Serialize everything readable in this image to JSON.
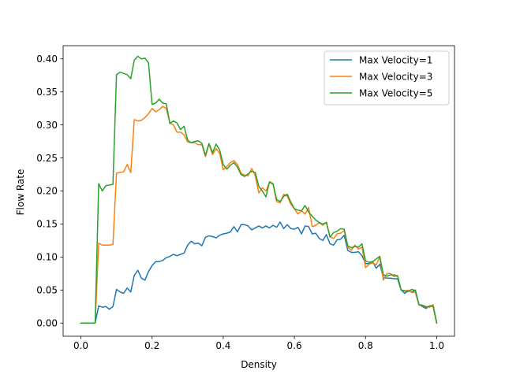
{
  "chart_data": {
    "type": "line",
    "title": "",
    "xlabel": "Density",
    "ylabel": "Flow Rate",
    "xlim": [
      -0.05,
      1.05
    ],
    "ylim": [
      -0.02,
      0.42
    ],
    "xticks": [
      0.0,
      0.2,
      0.4,
      0.6,
      0.8,
      1.0
    ],
    "xtick_labels": [
      "0.0",
      "0.2",
      "0.4",
      "0.6",
      "0.8",
      "1.0"
    ],
    "yticks": [
      0.0,
      0.05,
      0.1,
      0.15,
      0.2,
      0.25,
      0.3,
      0.35,
      0.4
    ],
    "ytick_labels": [
      "0.00",
      "0.05",
      "0.10",
      "0.15",
      "0.20",
      "0.25",
      "0.30",
      "0.35",
      "0.40"
    ],
    "grid": false,
    "legend_position": "top-right",
    "series": [
      {
        "name": "Max Velocity=1",
        "color": "#1f77b4",
        "x": [
          0.0,
          0.01,
          0.02,
          0.03,
          0.04,
          0.05,
          0.06,
          0.07,
          0.08,
          0.09,
          0.1,
          0.11,
          0.12,
          0.13,
          0.14,
          0.15,
          0.16,
          0.17,
          0.18,
          0.19,
          0.2,
          0.21,
          0.22,
          0.23,
          0.24,
          0.25,
          0.26,
          0.27,
          0.28,
          0.29,
          0.3,
          0.31,
          0.32,
          0.33,
          0.34,
          0.35,
          0.36,
          0.37,
          0.38,
          0.39,
          0.4,
          0.41,
          0.42,
          0.43,
          0.44,
          0.45,
          0.46,
          0.47,
          0.48,
          0.49,
          0.5,
          0.51,
          0.52,
          0.53,
          0.54,
          0.55,
          0.56,
          0.57,
          0.58,
          0.59,
          0.6,
          0.61,
          0.62,
          0.63,
          0.64,
          0.65,
          0.66,
          0.67,
          0.68,
          0.69,
          0.7,
          0.71,
          0.72,
          0.73,
          0.74,
          0.75,
          0.76,
          0.77,
          0.78,
          0.79,
          0.8,
          0.81,
          0.82,
          0.83,
          0.84,
          0.85,
          0.86,
          0.87,
          0.88,
          0.89,
          0.9,
          0.91,
          0.92,
          0.93,
          0.94,
          0.95,
          0.96,
          0.97,
          0.98,
          0.99,
          1.0
        ],
        "y": [
          0.0,
          0.0,
          0.0,
          0.0,
          0.0,
          0.026,
          0.024,
          0.025,
          0.021,
          0.025,
          0.051,
          0.047,
          0.045,
          0.053,
          0.047,
          0.072,
          0.08,
          0.068,
          0.065,
          0.078,
          0.087,
          0.093,
          0.093,
          0.095,
          0.099,
          0.101,
          0.104,
          0.102,
          0.104,
          0.106,
          0.118,
          0.124,
          0.12,
          0.121,
          0.117,
          0.13,
          0.132,
          0.131,
          0.129,
          0.133,
          0.135,
          0.136,
          0.138,
          0.146,
          0.138,
          0.149,
          0.149,
          0.147,
          0.141,
          0.144,
          0.147,
          0.144,
          0.147,
          0.144,
          0.148,
          0.145,
          0.153,
          0.143,
          0.149,
          0.143,
          0.142,
          0.145,
          0.135,
          0.147,
          0.146,
          0.135,
          0.136,
          0.128,
          0.125,
          0.134,
          0.12,
          0.118,
          0.126,
          0.127,
          0.133,
          0.11,
          0.107,
          0.107,
          0.108,
          0.102,
          0.09,
          0.09,
          0.093,
          0.083,
          0.089,
          0.069,
          0.068,
          0.068,
          0.067,
          0.067,
          0.05,
          0.045,
          0.049,
          0.047,
          0.05,
          0.028,
          0.025,
          0.022,
          0.026,
          0.026,
          0.0
        ]
      },
      {
        "name": "Max Velocity=3",
        "color": "#ff7f0e",
        "x": [
          0.0,
          0.01,
          0.02,
          0.03,
          0.04,
          0.05,
          0.06,
          0.07,
          0.08,
          0.09,
          0.1,
          0.11,
          0.12,
          0.13,
          0.14,
          0.15,
          0.16,
          0.17,
          0.18,
          0.19,
          0.2,
          0.21,
          0.22,
          0.23,
          0.24,
          0.25,
          0.26,
          0.27,
          0.28,
          0.29,
          0.3,
          0.31,
          0.32,
          0.33,
          0.34,
          0.35,
          0.36,
          0.37,
          0.38,
          0.39,
          0.4,
          0.41,
          0.42,
          0.43,
          0.44,
          0.45,
          0.46,
          0.47,
          0.48,
          0.49,
          0.5,
          0.51,
          0.52,
          0.53,
          0.54,
          0.55,
          0.56,
          0.57,
          0.58,
          0.59,
          0.6,
          0.61,
          0.62,
          0.63,
          0.64,
          0.65,
          0.66,
          0.67,
          0.68,
          0.69,
          0.7,
          0.71,
          0.72,
          0.73,
          0.74,
          0.75,
          0.76,
          0.77,
          0.78,
          0.79,
          0.8,
          0.81,
          0.82,
          0.83,
          0.84,
          0.85,
          0.86,
          0.87,
          0.88,
          0.89,
          0.9,
          0.91,
          0.92,
          0.93,
          0.94,
          0.95,
          0.96,
          0.97,
          0.98,
          0.99,
          1.0
        ],
        "y": [
          0.0,
          0.0,
          0.0,
          0.0,
          0.0,
          0.121,
          0.118,
          0.118,
          0.118,
          0.119,
          0.227,
          0.228,
          0.229,
          0.24,
          0.228,
          0.308,
          0.306,
          0.307,
          0.311,
          0.317,
          0.325,
          0.32,
          0.323,
          0.328,
          0.325,
          0.303,
          0.3,
          0.289,
          0.289,
          0.285,
          0.274,
          0.273,
          0.273,
          0.27,
          0.27,
          0.252,
          0.271,
          0.255,
          0.264,
          0.257,
          0.232,
          0.237,
          0.243,
          0.246,
          0.24,
          0.227,
          0.224,
          0.223,
          0.234,
          0.223,
          0.197,
          0.205,
          0.2,
          0.213,
          0.21,
          0.184,
          0.182,
          0.195,
          0.192,
          0.18,
          0.173,
          0.165,
          0.17,
          0.165,
          0.175,
          0.146,
          0.148,
          0.152,
          0.148,
          0.153,
          0.131,
          0.128,
          0.135,
          0.136,
          0.14,
          0.115,
          0.11,
          0.118,
          0.112,
          0.115,
          0.084,
          0.089,
          0.091,
          0.088,
          0.1,
          0.065,
          0.075,
          0.075,
          0.07,
          0.072,
          0.05,
          0.048,
          0.05,
          0.046,
          0.047,
          0.027,
          0.027,
          0.025,
          0.024,
          0.028,
          0.0
        ]
      },
      {
        "name": "Max Velocity=5",
        "color": "#2ca02c",
        "x": [
          0.0,
          0.01,
          0.02,
          0.03,
          0.04,
          0.05,
          0.06,
          0.07,
          0.08,
          0.09,
          0.1,
          0.11,
          0.12,
          0.13,
          0.14,
          0.15,
          0.16,
          0.17,
          0.18,
          0.19,
          0.2,
          0.21,
          0.22,
          0.23,
          0.24,
          0.25,
          0.26,
          0.27,
          0.28,
          0.29,
          0.3,
          0.31,
          0.32,
          0.33,
          0.34,
          0.35,
          0.36,
          0.37,
          0.38,
          0.39,
          0.4,
          0.41,
          0.42,
          0.43,
          0.44,
          0.45,
          0.46,
          0.47,
          0.48,
          0.49,
          0.5,
          0.51,
          0.52,
          0.53,
          0.54,
          0.55,
          0.56,
          0.57,
          0.58,
          0.59,
          0.6,
          0.61,
          0.62,
          0.63,
          0.64,
          0.65,
          0.66,
          0.67,
          0.68,
          0.69,
          0.7,
          0.71,
          0.72,
          0.73,
          0.74,
          0.75,
          0.76,
          0.77,
          0.78,
          0.79,
          0.8,
          0.81,
          0.82,
          0.83,
          0.84,
          0.85,
          0.86,
          0.87,
          0.88,
          0.89,
          0.9,
          0.91,
          0.92,
          0.93,
          0.94,
          0.95,
          0.96,
          0.97,
          0.98,
          0.99,
          1.0
        ],
        "y": [
          0.0,
          0.0,
          0.0,
          0.0,
          0.0,
          0.211,
          0.2,
          0.208,
          0.209,
          0.21,
          0.376,
          0.38,
          0.378,
          0.376,
          0.37,
          0.398,
          0.404,
          0.4,
          0.401,
          0.394,
          0.331,
          0.333,
          0.339,
          0.333,
          0.332,
          0.302,
          0.306,
          0.303,
          0.293,
          0.298,
          0.277,
          0.273,
          0.275,
          0.276,
          0.272,
          0.254,
          0.272,
          0.258,
          0.271,
          0.262,
          0.24,
          0.233,
          0.239,
          0.243,
          0.236,
          0.225,
          0.222,
          0.226,
          0.23,
          0.228,
          0.207,
          0.2,
          0.191,
          0.214,
          0.211,
          0.187,
          0.184,
          0.192,
          0.195,
          0.183,
          0.173,
          0.171,
          0.17,
          0.178,
          0.168,
          0.162,
          0.156,
          0.152,
          0.15,
          0.152,
          0.13,
          0.137,
          0.139,
          0.143,
          0.142,
          0.117,
          0.114,
          0.116,
          0.115,
          0.12,
          0.094,
          0.092,
          0.093,
          0.097,
          0.101,
          0.073,
          0.071,
          0.073,
          0.073,
          0.071,
          0.05,
          0.049,
          0.048,
          0.051,
          0.049,
          0.028,
          0.027,
          0.024,
          0.026,
          0.025,
          0.0
        ]
      }
    ]
  }
}
